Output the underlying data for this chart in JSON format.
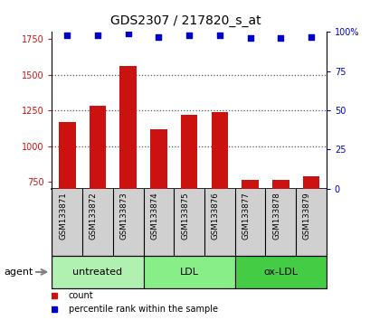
{
  "title": "GDS2307 / 217820_s_at",
  "samples": [
    "GSM133871",
    "GSM133872",
    "GSM133873",
    "GSM133874",
    "GSM133875",
    "GSM133876",
    "GSM133877",
    "GSM133878",
    "GSM133879"
  ],
  "counts": [
    1170,
    1280,
    1560,
    1120,
    1220,
    1240,
    760,
    765,
    790
  ],
  "percentile_ranks": [
    98,
    98,
    99,
    97,
    98,
    98,
    96,
    96,
    97
  ],
  "ylim_left": [
    700,
    1800
  ],
  "ylim_right": [
    0,
    100
  ],
  "yticks_left": [
    750,
    1000,
    1250,
    1500,
    1750
  ],
  "yticks_right": [
    0,
    25,
    50,
    75,
    100
  ],
  "groups": [
    {
      "label": "untreated",
      "indices": [
        0,
        1,
        2
      ],
      "color": "#b0f0b0"
    },
    {
      "label": "LDL",
      "indices": [
        3,
        4,
        5
      ],
      "color": "#88ee88"
    },
    {
      "label": "ox-LDL",
      "indices": [
        6,
        7,
        8
      ],
      "color": "#44cc44"
    }
  ],
  "bar_color": "#cc1111",
  "dot_color": "#0000cc",
  "bar_bottom": 700,
  "agent_label": "agent",
  "legend_count_label": "count",
  "legend_pct_label": "percentile rank within the sample",
  "left_tick_color": "#cc1111",
  "right_tick_color": "#0000cc",
  "background_color": "#ffffff",
  "plot_bg_color": "#ffffff",
  "label_area_color": "#d0d0d0",
  "grid_color": "#555555",
  "dot_size": 18
}
